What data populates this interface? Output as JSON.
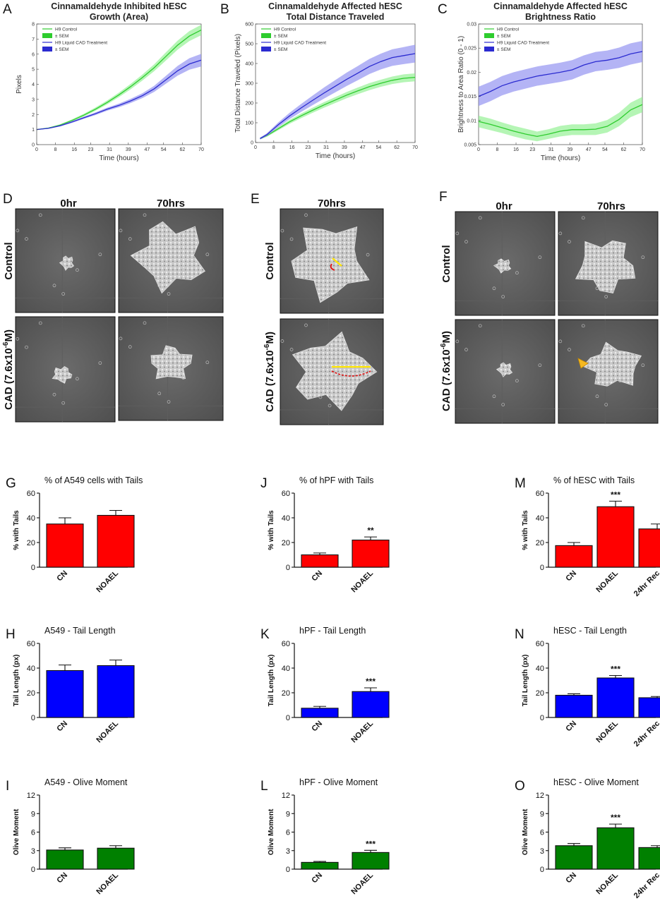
{
  "line_charts": [
    {
      "letter": "A",
      "title": [
        "Cinnamaldehyde Inhibited hESC",
        "Growth (Area)"
      ],
      "ylabel": "Pixels",
      "xlabel": "Time (hours)",
      "legend": [
        "H9 Control",
        "± SEM",
        "H9 Liquid CAD Treatment",
        "± SEM"
      ]
    },
    {
      "letter": "B",
      "title": [
        "Cinnamaldehyde Affected hESC",
        "Total Distance Traveled"
      ],
      "ylabel": "Total Distance Traveled (Pixels)",
      "xlabel": "Time (hours)",
      "legend": [
        "H9 Control",
        "± SEM",
        "H9 Liquid CAD Treatment",
        "± SEM"
      ]
    },
    {
      "letter": "C",
      "title": [
        "Cinnamaldehyde Affected hESC",
        "Brightness Ratio"
      ],
      "ylabel": "Brightness to Area Ratio (0 - 1)",
      "xlabel": "Time (hours)",
      "legend": [
        "H9 Control",
        "± SEM",
        "H9 Liquid CAD Treatment",
        "± SEM"
      ]
    }
  ],
  "image_panels": [
    {
      "letter": "D",
      "cols": [
        "0hr",
        "70hrs"
      ],
      "rows": [
        "Control",
        "CAD (7.6x10",
        "-6",
        "M)"
      ]
    },
    {
      "letter": "E",
      "cols": [
        "70hrs"
      ],
      "rows": [
        "Control",
        "CAD (7.6x10",
        "-6",
        "M)"
      ]
    },
    {
      "letter": "F",
      "cols": [
        "0hr",
        "70hrs"
      ],
      "rows": [
        "Control",
        "CAD (7.6x10",
        "-6",
        "M)"
      ]
    }
  ],
  "bar_charts": [
    {
      "letter": "G",
      "title": "% of A549 cells with Tails",
      "ylabel": "% with Tails"
    },
    {
      "letter": "J",
      "title": "% of hPF with Tails",
      "ylabel": "% with Tails"
    },
    {
      "letter": "M",
      "title": "% of hESC with Tails",
      "ylabel": "% with Tails"
    },
    {
      "letter": "H",
      "title": "A549 - Tail Length",
      "ylabel": "Tail Length (px)"
    },
    {
      "letter": "K",
      "title": "hPF - Tail Length",
      "ylabel": "Tail Length (px)"
    },
    {
      "letter": "N",
      "title": "hESC - Tail Length",
      "ylabel": "Tail Length (px)"
    },
    {
      "letter": "I",
      "title": "A549 - Olive Moment",
      "ylabel": "Olive Moment"
    },
    {
      "letter": "L",
      "title": "hPF - Olive Moment",
      "ylabel": "Olive Moment"
    },
    {
      "letter": "O",
      "title": "hESC - Olive Moment",
      "ylabel": "Olive Moment"
    }
  ],
  "chart_data": [
    {
      "type": "line",
      "title": "Cinnamaldehyde Inhibited hESC Growth (Area)",
      "xlabel": "Time (hours)",
      "ylabel": "Pixels",
      "xlim": [
        0,
        70
      ],
      "ylim": [
        0,
        8
      ],
      "xticks": [
        0,
        8,
        16,
        23,
        31,
        39,
        47,
        54,
        62,
        70
      ],
      "yticks": [
        0,
        1,
        2,
        3,
        4,
        5,
        6,
        7,
        8
      ],
      "grid": false,
      "legend": "top-left",
      "x": [
        0,
        5,
        10,
        15,
        20,
        25,
        30,
        35,
        40,
        45,
        50,
        55,
        60,
        65,
        70
      ],
      "series": [
        {
          "name": "H9 Control",
          "color": "#2ecc2e",
          "band_color": "#8ef08e",
          "values": [
            1.0,
            1.1,
            1.3,
            1.6,
            1.95,
            2.35,
            2.8,
            3.3,
            3.85,
            4.45,
            5.1,
            5.85,
            6.6,
            7.2,
            7.6
          ],
          "sem": [
            0.02,
            0.03,
            0.05,
            0.07,
            0.09,
            0.11,
            0.13,
            0.15,
            0.18,
            0.2,
            0.23,
            0.27,
            0.3,
            0.33,
            0.35
          ]
        },
        {
          "name": "H9 Liquid CAD Treatment",
          "color": "#2b2bd0",
          "band_color": "#8c8cf0",
          "values": [
            1.0,
            1.08,
            1.25,
            1.5,
            1.78,
            2.05,
            2.35,
            2.6,
            2.9,
            3.25,
            3.7,
            4.3,
            4.9,
            5.35,
            5.6
          ],
          "sem": [
            0.02,
            0.03,
            0.04,
            0.06,
            0.07,
            0.09,
            0.1,
            0.12,
            0.14,
            0.16,
            0.2,
            0.26,
            0.32,
            0.38,
            0.42
          ]
        }
      ]
    },
    {
      "type": "line",
      "title": "Cinnamaldehyde Affected hESC Total Distance Traveled",
      "xlabel": "Time (hours)",
      "ylabel": "Total Distance Traveled (Pixels)",
      "xlim": [
        0,
        70
      ],
      "ylim": [
        0,
        600
      ],
      "xticks": [
        0,
        8,
        16,
        23,
        31,
        39,
        47,
        54,
        62,
        70
      ],
      "yticks": [
        0,
        100,
        200,
        300,
        400,
        500,
        600
      ],
      "grid": false,
      "legend": "top-left",
      "x": [
        2,
        5,
        10,
        15,
        20,
        25,
        30,
        35,
        40,
        45,
        50,
        55,
        60,
        65,
        70
      ],
      "series": [
        {
          "name": "H9 Control",
          "color": "#2ecc2e",
          "band_color": "#8ef08e",
          "values": [
            20,
            35,
            70,
            105,
            135,
            163,
            190,
            215,
            240,
            262,
            283,
            300,
            315,
            325,
            330
          ],
          "sem": [
            5,
            6,
            8,
            10,
            12,
            13,
            14,
            15,
            16,
            17,
            18,
            18,
            19,
            20,
            20
          ]
        },
        {
          "name": "H9 Liquid CAD Treatment",
          "color": "#2b2bd0",
          "band_color": "#8c8cf0",
          "values": [
            20,
            40,
            90,
            135,
            175,
            213,
            250,
            285,
            320,
            352,
            385,
            410,
            430,
            440,
            450
          ],
          "sem": [
            5,
            7,
            12,
            16,
            20,
            24,
            28,
            31,
            34,
            36,
            38,
            40,
            42,
            43,
            45
          ]
        }
      ]
    },
    {
      "type": "line",
      "title": "Cinnamaldehyde Affected hESC Brightness Ratio",
      "xlabel": "Time (hours)",
      "ylabel": "Brightness to Area Ratio (0 - 1)",
      "xlim": [
        0,
        70
      ],
      "ylim": [
        0.005,
        0.03
      ],
      "xticks": [
        0,
        8,
        16,
        23,
        31,
        39,
        47,
        54,
        62,
        70
      ],
      "yticks": [
        0.005,
        0.01,
        0.015,
        0.02,
        0.025,
        0.03
      ],
      "grid": false,
      "legend": "top-left",
      "x": [
        0,
        5,
        10,
        15,
        20,
        25,
        30,
        35,
        40,
        45,
        50,
        55,
        60,
        65,
        70
      ],
      "series": [
        {
          "name": "H9 Control",
          "color": "#2ecc2e",
          "band_color": "#8ef08e",
          "values": [
            0.0098,
            0.0092,
            0.0085,
            0.0078,
            0.0072,
            0.0067,
            0.0072,
            0.0078,
            0.0081,
            0.0081,
            0.0082,
            0.0088,
            0.0102,
            0.0122,
            0.0133
          ],
          "sem": [
            0.0012,
            0.0012,
            0.0011,
            0.0011,
            0.0011,
            0.001,
            0.001,
            0.0011,
            0.0011,
            0.0011,
            0.0012,
            0.0013,
            0.0014,
            0.0015,
            0.0016
          ]
        },
        {
          "name": "H9 Liquid CAD Treatment",
          "color": "#2b2bd0",
          "band_color": "#8c8cf0",
          "values": [
            0.015,
            0.016,
            0.0172,
            0.018,
            0.0186,
            0.0192,
            0.0196,
            0.02,
            0.0205,
            0.0215,
            0.0222,
            0.0225,
            0.023,
            0.0238,
            0.0243
          ],
          "sem": [
            0.002,
            0.002,
            0.002,
            0.002,
            0.002,
            0.002,
            0.002,
            0.002,
            0.002,
            0.002,
            0.002,
            0.002,
            0.0021,
            0.0022,
            0.0022
          ]
        }
      ]
    },
    {
      "type": "bar",
      "title": "% of A549 cells with Tails",
      "ylabel": "% with Tails",
      "categories": [
        "CN",
        "NOAEL"
      ],
      "values": [
        35,
        42
      ],
      "errors": [
        5,
        4
      ],
      "sig": [
        "",
        ""
      ],
      "ylim": [
        0,
        60
      ],
      "yticks": [
        0,
        20,
        40,
        60
      ],
      "color": "#ff0000"
    },
    {
      "type": "bar",
      "title": "% of hPF with Tails",
      "ylabel": "% with Tails",
      "categories": [
        "CN",
        "NOAEL"
      ],
      "values": [
        10,
        22
      ],
      "errors": [
        1.5,
        2.5
      ],
      "sig": [
        "",
        "**"
      ],
      "ylim": [
        0,
        60
      ],
      "yticks": [
        0,
        20,
        40,
        60
      ],
      "color": "#ff0000"
    },
    {
      "type": "bar",
      "title": "% of hESC with Tails",
      "ylabel": "% with Tails",
      "categories": [
        "CN",
        "NOAEL",
        "24hr Rec"
      ],
      "values": [
        17.5,
        49,
        31
      ],
      "errors": [
        2.5,
        4.5,
        4
      ],
      "sig": [
        "",
        "***",
        ""
      ],
      "ylim": [
        0,
        60
      ],
      "yticks": [
        0,
        20,
        40,
        60
      ],
      "color": "#ff0000"
    },
    {
      "type": "bar",
      "title": "A549 - Tail Length",
      "ylabel": "Tail Length (px)",
      "categories": [
        "CN",
        "NOAEL"
      ],
      "values": [
        38,
        42
      ],
      "errors": [
        4.5,
        4.5
      ],
      "sig": [
        "",
        ""
      ],
      "ylim": [
        0,
        60
      ],
      "yticks": [
        0,
        20,
        40,
        60
      ],
      "color": "#0000ff"
    },
    {
      "type": "bar",
      "title": "hPF - Tail Length",
      "ylabel": "Tail Length (px)",
      "categories": [
        "CN",
        "NOAEL"
      ],
      "values": [
        7.5,
        21
      ],
      "errors": [
        1.5,
        3
      ],
      "sig": [
        "",
        "***"
      ],
      "ylim": [
        0,
        60
      ],
      "yticks": [
        0,
        20,
        40,
        60
      ],
      "color": "#0000ff"
    },
    {
      "type": "bar",
      "title": "hESC - Tail Length",
      "ylabel": "Tail Length (px)",
      "categories": [
        "CN",
        "NOAEL",
        "24hr Rec"
      ],
      "values": [
        18,
        32,
        16
      ],
      "errors": [
        1.2,
        2,
        1
      ],
      "sig": [
        "",
        "***",
        ""
      ],
      "ylim": [
        0,
        60
      ],
      "yticks": [
        0,
        20,
        40,
        60
      ],
      "color": "#0000ff"
    },
    {
      "type": "bar",
      "title": "A549 - Olive Moment",
      "ylabel": "Olive Moment",
      "categories": [
        "CN",
        "NOAEL"
      ],
      "values": [
        3.1,
        3.4
      ],
      "errors": [
        0.35,
        0.4
      ],
      "sig": [
        "",
        ""
      ],
      "ylim": [
        0,
        12
      ],
      "yticks": [
        0,
        3,
        6,
        9,
        12
      ],
      "color": "#008000"
    },
    {
      "type": "bar",
      "title": "hPF - Olive Moment",
      "ylabel": "Olive Moment",
      "categories": [
        "CN",
        "NOAEL"
      ],
      "values": [
        1.1,
        2.7
      ],
      "errors": [
        0.15,
        0.35
      ],
      "sig": [
        "",
        "***"
      ],
      "ylim": [
        0,
        12
      ],
      "yticks": [
        0,
        3,
        6,
        9,
        12
      ],
      "color": "#008000"
    },
    {
      "type": "bar",
      "title": "hESC - Olive Moment",
      "ylabel": "Olive Moment",
      "categories": [
        "CN",
        "NOAEL",
        "24hr Rec"
      ],
      "values": [
        3.8,
        6.7,
        3.5
      ],
      "errors": [
        0.35,
        0.6,
        0.3
      ],
      "sig": [
        "",
        "***",
        ""
      ],
      "ylim": [
        0,
        12
      ],
      "yticks": [
        0,
        3,
        6,
        9,
        12
      ],
      "color": "#008000"
    }
  ]
}
